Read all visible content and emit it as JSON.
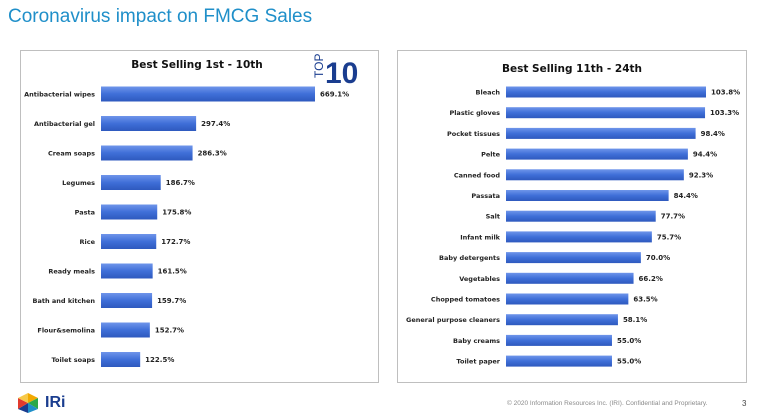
{
  "slide": {
    "title": "Coronavirus impact on FMCG Sales",
    "footer": "© 2020 Information Resources Inc. (IRI). Confidential and Proprietary.",
    "page_number": "3",
    "logo_text": "IRi",
    "badge_top": "TOP",
    "badge_number": "10"
  },
  "colors": {
    "title": "#1f8fc9",
    "bar": "#3f6fd8",
    "bar_light": "#6f95ea"
  },
  "chart_data": [
    {
      "type": "bar",
      "orientation": "horizontal",
      "title": "Best Selling 1st - 10th",
      "categories": [
        "Antibacterial wipes",
        "Antibacterial gel",
        "Cream soaps",
        "Legumes",
        "Pasta",
        "Rice",
        "Ready meals",
        "Bath and kitchen",
        "Flour&semolina",
        "Toilet soaps"
      ],
      "values": [
        669.1,
        297.4,
        286.3,
        186.7,
        175.8,
        172.7,
        161.5,
        159.7,
        152.7,
        122.5
      ],
      "labels": [
        "669.1%",
        "297.4%",
        "286.3%",
        "186.7%",
        "175.8%",
        "172.7%",
        "161.5%",
        "159.7%",
        "152.7%",
        "122.5%"
      ],
      "xlim": [
        0,
        669.1
      ]
    },
    {
      "type": "bar",
      "orientation": "horizontal",
      "title": "Best Selling 11th - 24th",
      "categories": [
        "Bleach",
        "Plastic gloves",
        "Pocket tissues",
        "Pelte",
        "Canned food",
        "Passata",
        "Salt",
        "Infant milk",
        "Baby detergents",
        "Vegetables",
        "Chopped tomatoes",
        "General purpose cleaners",
        "Baby creams",
        "Toilet paper"
      ],
      "values": [
        103.8,
        103.3,
        98.4,
        94.4,
        92.3,
        84.4,
        77.7,
        75.7,
        70.0,
        66.2,
        63.5,
        58.1,
        55.0,
        55.0
      ],
      "labels": [
        "103.8%",
        "103.3%",
        "98.4%",
        "94.4%",
        "92.3%",
        "84.4%",
        "77.7%",
        "75.7%",
        "70.0%",
        "66.2%",
        "63.5%",
        "58.1%",
        "55.0%",
        "55.0%"
      ],
      "xlim": [
        0,
        103.8
      ]
    }
  ]
}
